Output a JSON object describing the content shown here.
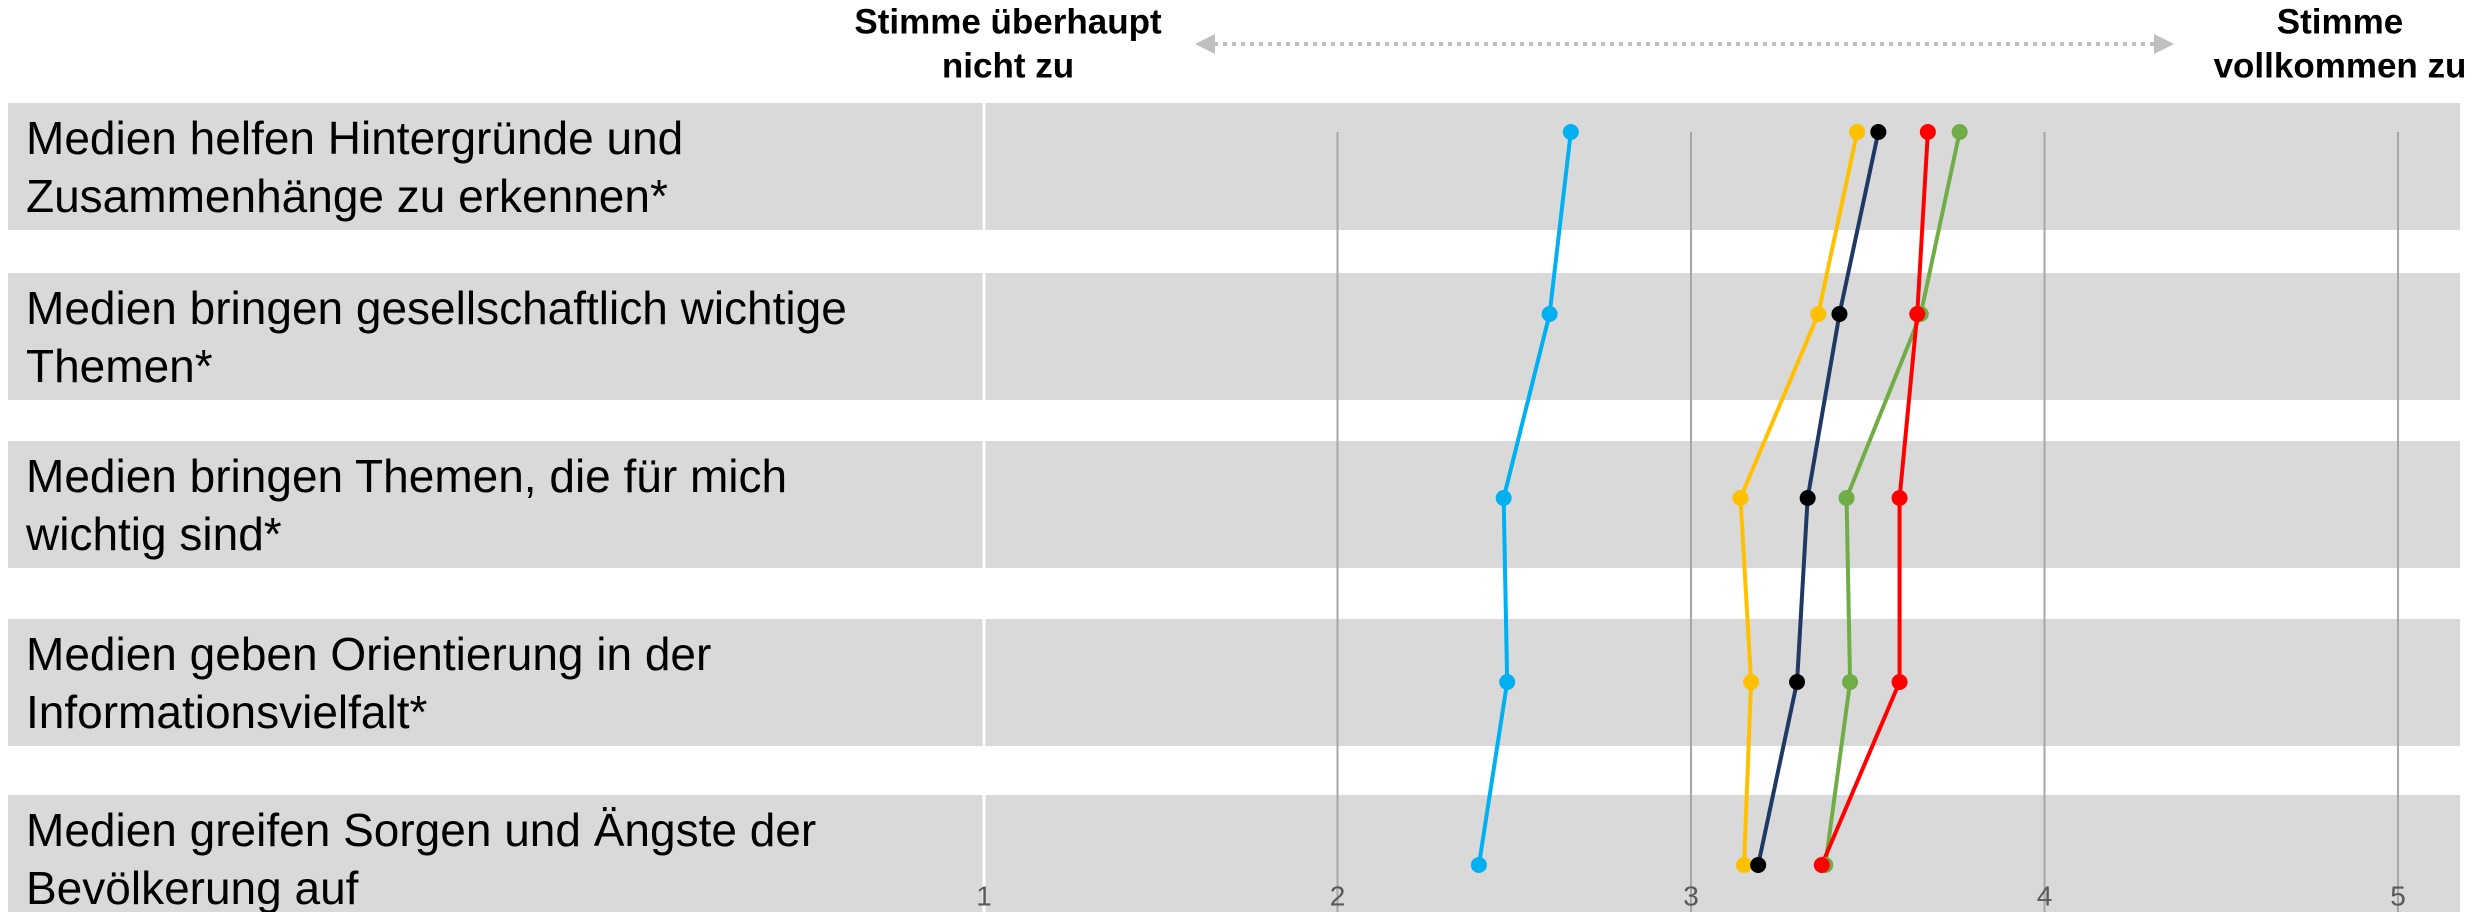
{
  "chart_data": {
    "type": "line",
    "orientation": "horizontal",
    "header_left": [
      "Stimme überhaupt",
      "nicht zu"
    ],
    "header_right": [
      "Stimme",
      "vollkommen zu"
    ],
    "categories": [
      "Medien helfen Hintergründe und Zusammenhänge zu erkennen*",
      "Medien bringen gesellschaftlich wichtige Themen*",
      "Medien bringen Themen, die für mich wichtig sind*",
      "Medien geben Orientierung in der Informationsvielfalt*",
      "Medien greifen Sorgen und Ängste der Bevölkerung auf"
    ],
    "series": [
      {
        "color": "#00b0f0",
        "marker_color": "#00b0f0",
        "values": [
          2.66,
          2.6,
          2.47,
          2.48,
          2.4
        ]
      },
      {
        "color": "#ffc000",
        "marker_color": "#ffc000",
        "values": [
          3.47,
          3.36,
          3.14,
          3.17,
          3.15
        ]
      },
      {
        "color": "#1f3864",
        "marker_color": "#000000",
        "values": [
          3.53,
          3.42,
          3.33,
          3.3,
          3.19
        ]
      },
      {
        "color": "#70ad47",
        "marker_color": "#70ad47",
        "values": [
          3.76,
          3.65,
          3.44,
          3.45,
          3.38
        ]
      },
      {
        "color": "#ff0000",
        "marker_color": "#ff0000",
        "values": [
          3.67,
          3.64,
          3.59,
          3.59,
          3.37
        ]
      }
    ],
    "xlim": [
      1,
      5
    ],
    "xticks": [
      1,
      2,
      3,
      4,
      5
    ],
    "grid": true
  }
}
